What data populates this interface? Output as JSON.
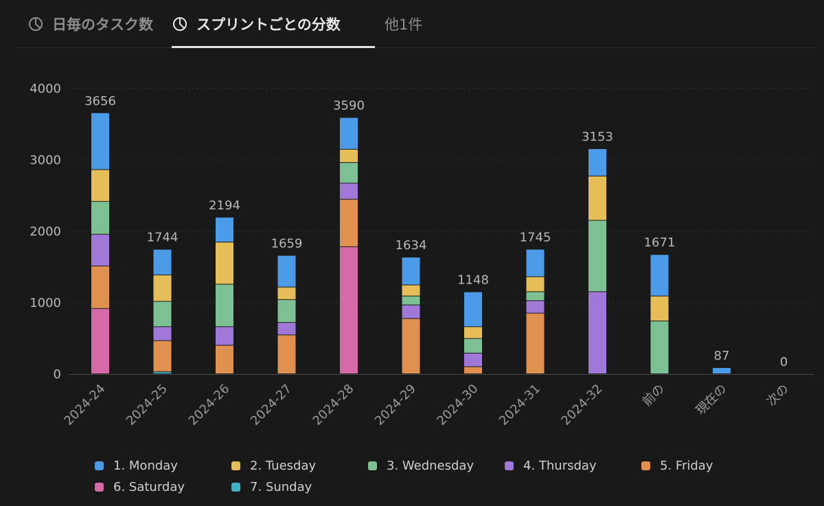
{
  "tabs": [
    {
      "label": "日毎のタスク数",
      "icon": "pie-chart-icon",
      "active": false
    },
    {
      "label": "スプリントごとの分数",
      "icon": "pie-chart-icon",
      "active": true
    },
    {
      "label": "他1件",
      "active": false
    }
  ],
  "chart_data": {
    "type": "bar",
    "stacked": true,
    "title": "",
    "xlabel": "",
    "ylabel": "",
    "ylim": [
      0,
      4000
    ],
    "yticks": [
      0,
      1000,
      2000,
      3000,
      4000
    ],
    "grid": true,
    "legend_position": "bottom",
    "categories": [
      "2024-24",
      "2024-25",
      "2024-26",
      "2024-27",
      "2024-28",
      "2024-29",
      "2024-30",
      "2024-31",
      "2024-32",
      "前の",
      "現在の",
      "次の"
    ],
    "totals": [
      3656,
      1744,
      2194,
      1659,
      3590,
      1634,
      1148,
      1745,
      3153,
      1671,
      87,
      0
    ],
    "series": [
      {
        "name": "6. Saturday",
        "color": "#d56aa8",
        "values": [
          915,
          0,
          0,
          0,
          1780,
          0,
          0,
          0,
          0,
          0,
          0,
          0
        ]
      },
      {
        "name": "7. Sunday",
        "color": "#3fb3c6",
        "values": [
          0,
          30,
          0,
          0,
          0,
          0,
          0,
          0,
          0,
          0,
          0,
          0
        ]
      },
      {
        "name": "5. Friday",
        "color": "#e0904f",
        "values": [
          595,
          435,
          400,
          545,
          665,
          775,
          100,
          850,
          0,
          0,
          0,
          0
        ]
      },
      {
        "name": "4. Thursday",
        "color": "#9f78d8",
        "values": [
          445,
          195,
          260,
          175,
          225,
          190,
          190,
          175,
          1150,
          0,
          0,
          0
        ]
      },
      {
        "name": "3. Wednesday",
        "color": "#7cc093",
        "values": [
          460,
          355,
          595,
          320,
          290,
          125,
          205,
          125,
          1000,
          740,
          0,
          0
        ]
      },
      {
        "name": "2. Tuesday",
        "color": "#e6be57",
        "values": [
          445,
          370,
          590,
          175,
          185,
          155,
          165,
          210,
          620,
          350,
          0,
          0
        ]
      },
      {
        "name": "1. Monday",
        "color": "#4c9be8",
        "values": [
          796,
          359,
          349,
          444,
          445,
          389,
          488,
          385,
          383,
          581,
          87,
          0
        ]
      }
    ]
  },
  "legend": [
    {
      "label": "1. Monday",
      "color": "#4c9be8"
    },
    {
      "label": "2. Tuesday",
      "color": "#e6be57"
    },
    {
      "label": "3. Wednesday",
      "color": "#7cc093"
    },
    {
      "label": "4. Thursday",
      "color": "#9f78d8"
    },
    {
      "label": "5. Friday",
      "color": "#e0904f"
    },
    {
      "label": "6. Saturday",
      "color": "#d56aa8"
    },
    {
      "label": "7. Sunday",
      "color": "#3fb3c6"
    }
  ]
}
